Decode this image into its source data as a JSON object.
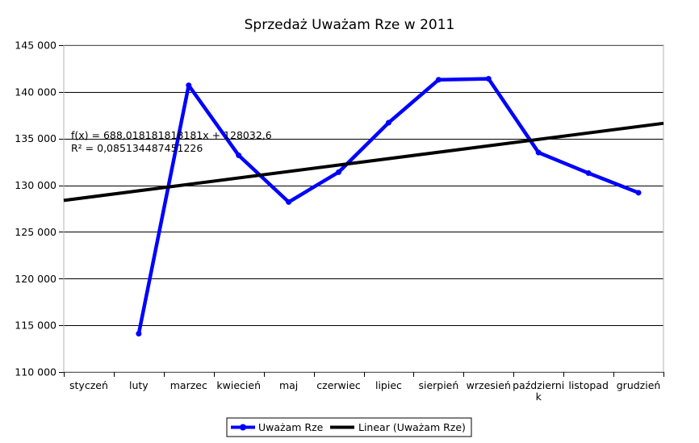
{
  "chart_data": {
    "type": "line",
    "title": "Sprzedaż Uważam Rze w 2011",
    "xlabel": "",
    "ylabel": "",
    "categories": [
      "styczeń",
      "luty",
      "marzec",
      "kwiecień",
      "maj",
      "czerwiec",
      "lipiec",
      "sierpień",
      "wrzesień",
      "październik",
      "listopad",
      "grudzień"
    ],
    "category_lines": [
      [
        "styczeń"
      ],
      [
        "luty"
      ],
      [
        "marzec"
      ],
      [
        "kwiecień"
      ],
      [
        "maj"
      ],
      [
        "czerwiec"
      ],
      [
        "lipiec"
      ],
      [
        "sierpień"
      ],
      [
        "wrzesień"
      ],
      [
        "październi",
        "k"
      ],
      [
        "listopad"
      ],
      [
        "grudzień"
      ]
    ],
    "ylim": [
      110000,
      145000
    ],
    "yticks": [
      110000,
      115000,
      120000,
      125000,
      130000,
      135000,
      140000,
      145000
    ],
    "ytick_labels": [
      "110 000",
      "115 000",
      "120 000",
      "125 000",
      "130 000",
      "135 000",
      "140 000",
      "145 000"
    ],
    "grid": true,
    "legend_position": "bottom",
    "series": [
      {
        "name": "Uważam Rze",
        "color": "#0000ff",
        "marker": "circle",
        "values": [
          null,
          114100,
          140700,
          133200,
          128200,
          131400,
          136700,
          141300,
          141400,
          133500,
          131300,
          129200
        ]
      }
    ],
    "trendline": {
      "name": "Linear (Uważam Rze)",
      "color": "#000000",
      "slope": 688.018181818181,
      "intercept": 128032.6,
      "equation": "f(x) = 688,018181818181x + 128032,6",
      "r_squared": "R² = 0,085134487451226"
    }
  }
}
